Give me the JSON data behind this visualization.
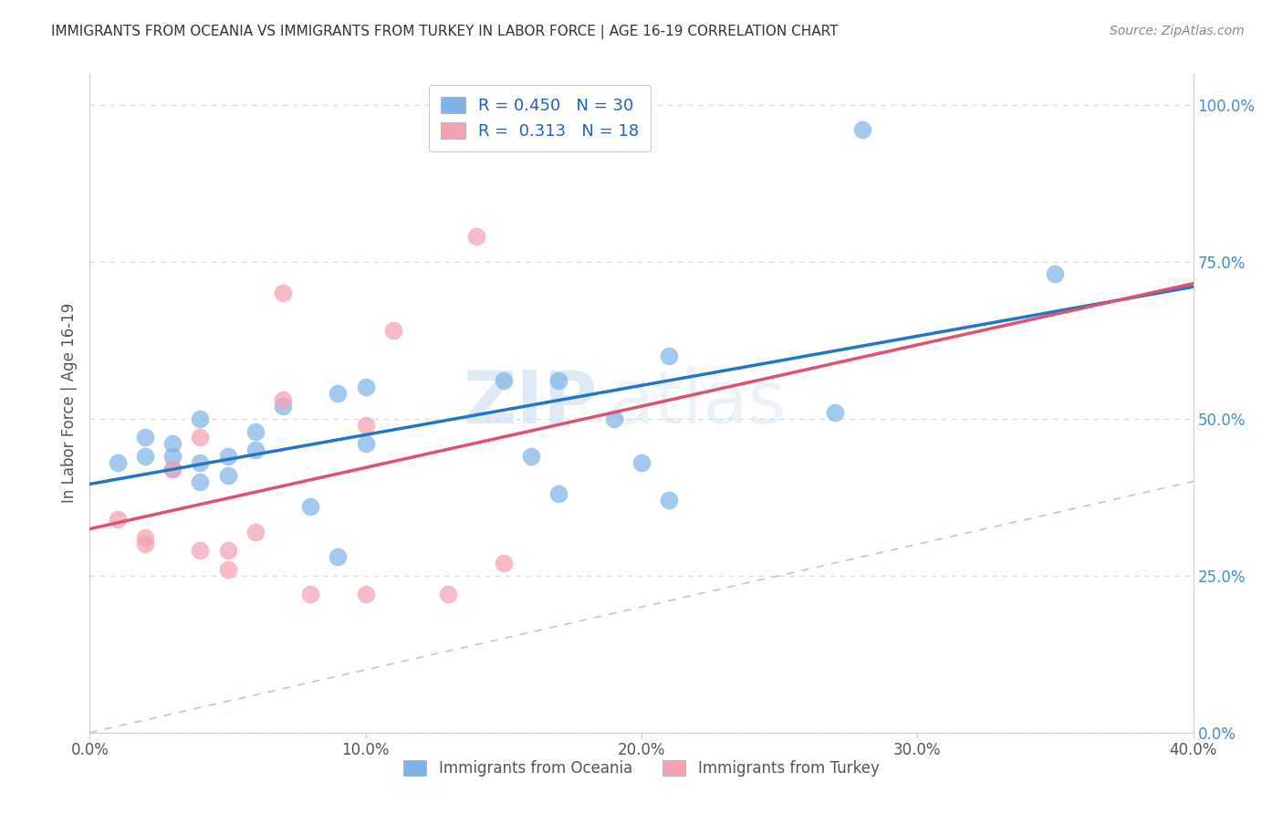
{
  "title": "IMMIGRANTS FROM OCEANIA VS IMMIGRANTS FROM TURKEY IN LABOR FORCE | AGE 16-19 CORRELATION CHART",
  "source": "Source: ZipAtlas.com",
  "ylabel": "In Labor Force | Age 16-19",
  "xlim": [
    0.0,
    0.4
  ],
  "ylim": [
    0.0,
    1.05
  ],
  "x_tick_vals": [
    0.0,
    0.1,
    0.2,
    0.3,
    0.4
  ],
  "x_tick_labels": [
    "0.0%",
    "10.0%",
    "20.0%",
    "30.0%",
    "40.0%"
  ],
  "y_tick_vals": [
    0.0,
    0.25,
    0.5,
    0.75,
    1.0
  ],
  "y_tick_labels_right": [
    "0.0%",
    "25.0%",
    "50.0%",
    "75.0%",
    "100.0%"
  ],
  "oceania_color": "#7EB3E8",
  "turkey_color": "#F4A0B0",
  "oceania_line_color": "#2176C8",
  "turkey_line_color": "#E05070",
  "diag_line_color": "#E0B8C0",
  "legend_oceania_r": "0.450",
  "legend_oceania_n": "30",
  "legend_turkey_r": "0.313",
  "legend_turkey_n": "18",
  "watermark_zip": "ZIP",
  "watermark_atlas": "atlas",
  "oceania_scatter_x": [
    0.01,
    0.02,
    0.02,
    0.03,
    0.03,
    0.03,
    0.04,
    0.04,
    0.04,
    0.05,
    0.05,
    0.06,
    0.06,
    0.07,
    0.08,
    0.09,
    0.09,
    0.1,
    0.1,
    0.15,
    0.16,
    0.17,
    0.17,
    0.19,
    0.2,
    0.21,
    0.21,
    0.27,
    0.28,
    0.35
  ],
  "oceania_scatter_y": [
    0.43,
    0.44,
    0.47,
    0.42,
    0.44,
    0.46,
    0.4,
    0.43,
    0.5,
    0.41,
    0.44,
    0.45,
    0.48,
    0.52,
    0.36,
    0.28,
    0.54,
    0.46,
    0.55,
    0.56,
    0.44,
    0.38,
    0.56,
    0.5,
    0.43,
    0.37,
    0.6,
    0.51,
    0.96,
    0.73
  ],
  "turkey_scatter_x": [
    0.01,
    0.02,
    0.02,
    0.03,
    0.04,
    0.04,
    0.05,
    0.05,
    0.06,
    0.07,
    0.07,
    0.08,
    0.1,
    0.1,
    0.11,
    0.13,
    0.14,
    0.15
  ],
  "turkey_scatter_y": [
    0.34,
    0.3,
    0.31,
    0.42,
    0.47,
    0.29,
    0.26,
    0.29,
    0.32,
    0.7,
    0.53,
    0.22,
    0.22,
    0.49,
    0.64,
    0.22,
    0.79,
    0.27
  ],
  "background_color": "#FFFFFF",
  "grid_color": "#DDDDDD"
}
